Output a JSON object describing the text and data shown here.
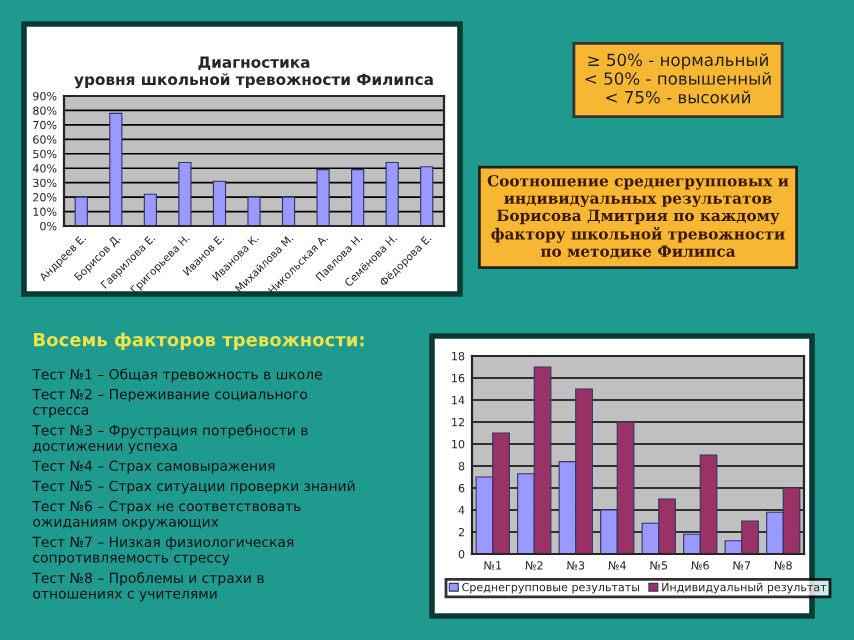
{
  "chart_data": [
    {
      "type": "bar",
      "title": "Диагностика\nуровня школьной тревожности Филипса",
      "categories": [
        "Андреев Е.",
        "Борисов Д.",
        "Гаврилова Е.",
        "Григорьева Н.",
        "Иванов Е.",
        "Иванова К.",
        "Михайлова М.",
        "Никольская А.",
        "Павлова Н.",
        "Семёнова Н.",
        "Фёдорова Е."
      ],
      "values": [
        20,
        78,
        22,
        44,
        31,
        20,
        20,
        39,
        39,
        44,
        41
      ],
      "color": "#9999ff",
      "ylim": [
        0,
        90
      ],
      "yticks": [
        {
          "value": 0,
          "label": "0%"
        },
        {
          "value": 10,
          "label": "10%"
        },
        {
          "value": 20,
          "label": "20%"
        },
        {
          "value": 30,
          "label": "30%"
        },
        {
          "value": 40,
          "label": "40%"
        },
        {
          "value": 50,
          "label": "50%"
        },
        {
          "value": 60,
          "label": "60%"
        },
        {
          "value": 70,
          "label": "70%"
        },
        {
          "value": 80,
          "label": "80%"
        },
        {
          "value": 90,
          "label": "90%"
        }
      ],
      "grid": "y",
      "legend": false,
      "annotations": [
        "≥ 50% - нормальный\n< 50% - повышенный\n< 75% - высокий"
      ]
    },
    {
      "type": "bar",
      "title": "Соотношение среднегрупповых и\nиндивидуальных результатов\nБорисова Дмитрия по каждому\nфактору школьной тревожности\nпо методике Филипса",
      "categories": [
        "№1",
        "№2",
        "№3",
        "№4",
        "№5",
        "№6",
        "№7",
        "№8"
      ],
      "series": [
        {
          "name": "Среднегрупповые результаты",
          "color": "#9999ff",
          "values": [
            7,
            7.3,
            8.4,
            4,
            2.8,
            1.8,
            1.2,
            3.8
          ]
        },
        {
          "name": "Индивидуальный результат",
          "color": "#993366",
          "values": [
            11,
            17,
            15,
            12,
            5,
            9,
            3,
            6
          ]
        }
      ],
      "ylim": [
        0,
        18
      ],
      "yticks": [
        0,
        2,
        4,
        6,
        8,
        10,
        12,
        14,
        16,
        18
      ],
      "grid": "y",
      "legend": "bottom"
    },
    {
      "type": "other",
      "title": "Восемь факторов тревожности:",
      "annotations": [
        "Тест №1 – Общая тревожность в школе",
        "Тест №2 – Переживание социального\nстресса",
        "Тест №3 – Фрустрация потребности в\nдостижении успеха",
        "Тест №4 – Страх самовыражения",
        "Тест №5 – Страх ситуации проверки знаний",
        "Тест №6 – Страх не соответствовать\nожиданиям окружающих",
        "Тест №7 – Низкая физиологическая\nсопротивляемость стрессу",
        "Тест №8 – Проблемы и страхи в\nотношениях с учителями"
      ]
    }
  ]
}
